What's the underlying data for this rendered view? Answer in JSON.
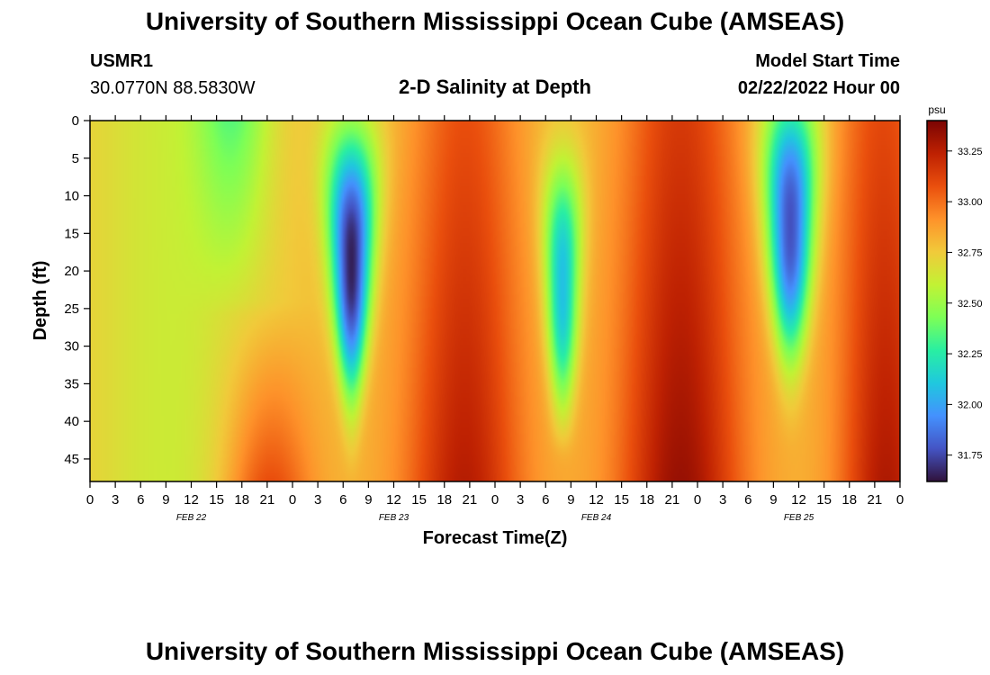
{
  "page": {
    "title": "University of Southern Mississippi Ocean Cube (AMSEAS)",
    "footer_title": "University of Southern Mississippi Ocean Cube (AMSEAS)",
    "station_id": "USMR1",
    "coordinates": "30.0770N  88.5830W",
    "subtitle": "2-D Salinity at Depth",
    "model_start_label": "Model Start Time",
    "model_start_value": "02/22/2022 Hour 00"
  },
  "chart_data": {
    "type": "heatmap",
    "title": "2-D Salinity at Depth",
    "xlabel": "Forecast Time(Z)",
    "ylabel": "Depth (ft)",
    "ylim": [
      0,
      48
    ],
    "y_ticks": [
      0,
      5,
      10,
      15,
      20,
      25,
      30,
      35,
      40,
      45
    ],
    "x_hours_range": [
      0,
      96
    ],
    "x_tick_labels": [
      "0",
      "3",
      "6",
      "9",
      "12",
      "15",
      "18",
      "21",
      "0",
      "3",
      "6",
      "9",
      "12",
      "15",
      "18",
      "21",
      "0",
      "3",
      "6",
      "9",
      "12",
      "15",
      "18",
      "21",
      "0",
      "3",
      "6",
      "9",
      "12",
      "15",
      "18",
      "21",
      "0"
    ],
    "date_labels": [
      {
        "label": "FEB 22",
        "hour": 12
      },
      {
        "label": "FEB 23",
        "hour": 36
      },
      {
        "label": "FEB 24",
        "hour": 60
      },
      {
        "label": "FEB 25",
        "hour": 84
      }
    ],
    "colorbar": {
      "unit": "psu",
      "range": [
        31.62,
        33.4
      ],
      "ticks": [
        "33.25",
        "33.00",
        "32.75",
        "32.50",
        "32.25",
        "32.00",
        "31.75"
      ],
      "colors": [
        "#30123b",
        "#4454c4",
        "#4491fe",
        "#1fc8de",
        "#29efa2",
        "#7dff56",
        "#c2f234",
        "#f1ca3a",
        "#fe922a",
        "#ea4f0d",
        "#be2102",
        "#7a0403"
      ]
    },
    "low_salinity_events": [
      {
        "center_hour": 31,
        "max_depth_ft": 48,
        "min_psu": 31.68
      },
      {
        "center_hour": 56,
        "max_depth_ft": 44,
        "min_psu": 32.05
      },
      {
        "center_hour": 83,
        "max_depth_ft": 44,
        "min_psu": 31.78
      }
    ]
  }
}
